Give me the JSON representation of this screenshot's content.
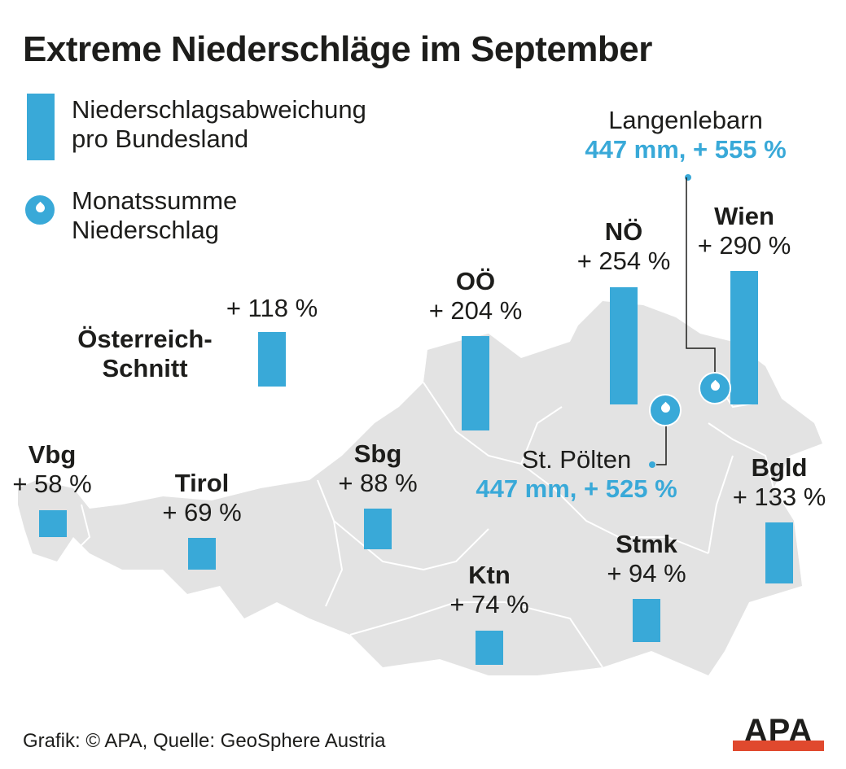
{
  "title": "Extreme Niederschläge im September",
  "legend": {
    "bar_label_1": "Niederschlagsabweichung",
    "bar_label_2": "pro Bundesland",
    "drop_label_1": "Monatssumme",
    "drop_label_2": "Niederschlag"
  },
  "colors": {
    "bar": "#39a9d8",
    "map": "#e3e3e3",
    "logo_red": "#e0492e"
  },
  "regions": [
    {
      "name": "Österreich-",
      "name2": "Schnitt",
      "label": "+ 118 %",
      "value": 118
    },
    {
      "name": "OÖ",
      "label": "+ 204 %",
      "value": 204
    },
    {
      "name": "NÖ",
      "label": "+ 254 %",
      "value": 254
    },
    {
      "name": "Wien",
      "label": "+ 290 %",
      "value": 290
    },
    {
      "name": "Vbg",
      "label": "+ 58 %",
      "value": 58
    },
    {
      "name": "Tirol",
      "label": "+ 69 %",
      "value": 69
    },
    {
      "name": "Sbg",
      "label": "+ 88 %",
      "value": 88
    },
    {
      "name": "Ktn",
      "label": "+ 74 %",
      "value": 74
    },
    {
      "name": "Stmk",
      "label": "+ 94 %",
      "value": 94
    },
    {
      "name": "Bgld",
      "label": "+ 133 %",
      "value": 133
    }
  ],
  "stations": [
    {
      "name": "Langenlebarn",
      "value": "447 mm, + 555 %"
    },
    {
      "name": "St. Pölten",
      "value": "447 mm, + 525 %"
    }
  ],
  "source": "Grafik: © APA, Quelle: GeoSphere Austria",
  "logo": "APA"
}
